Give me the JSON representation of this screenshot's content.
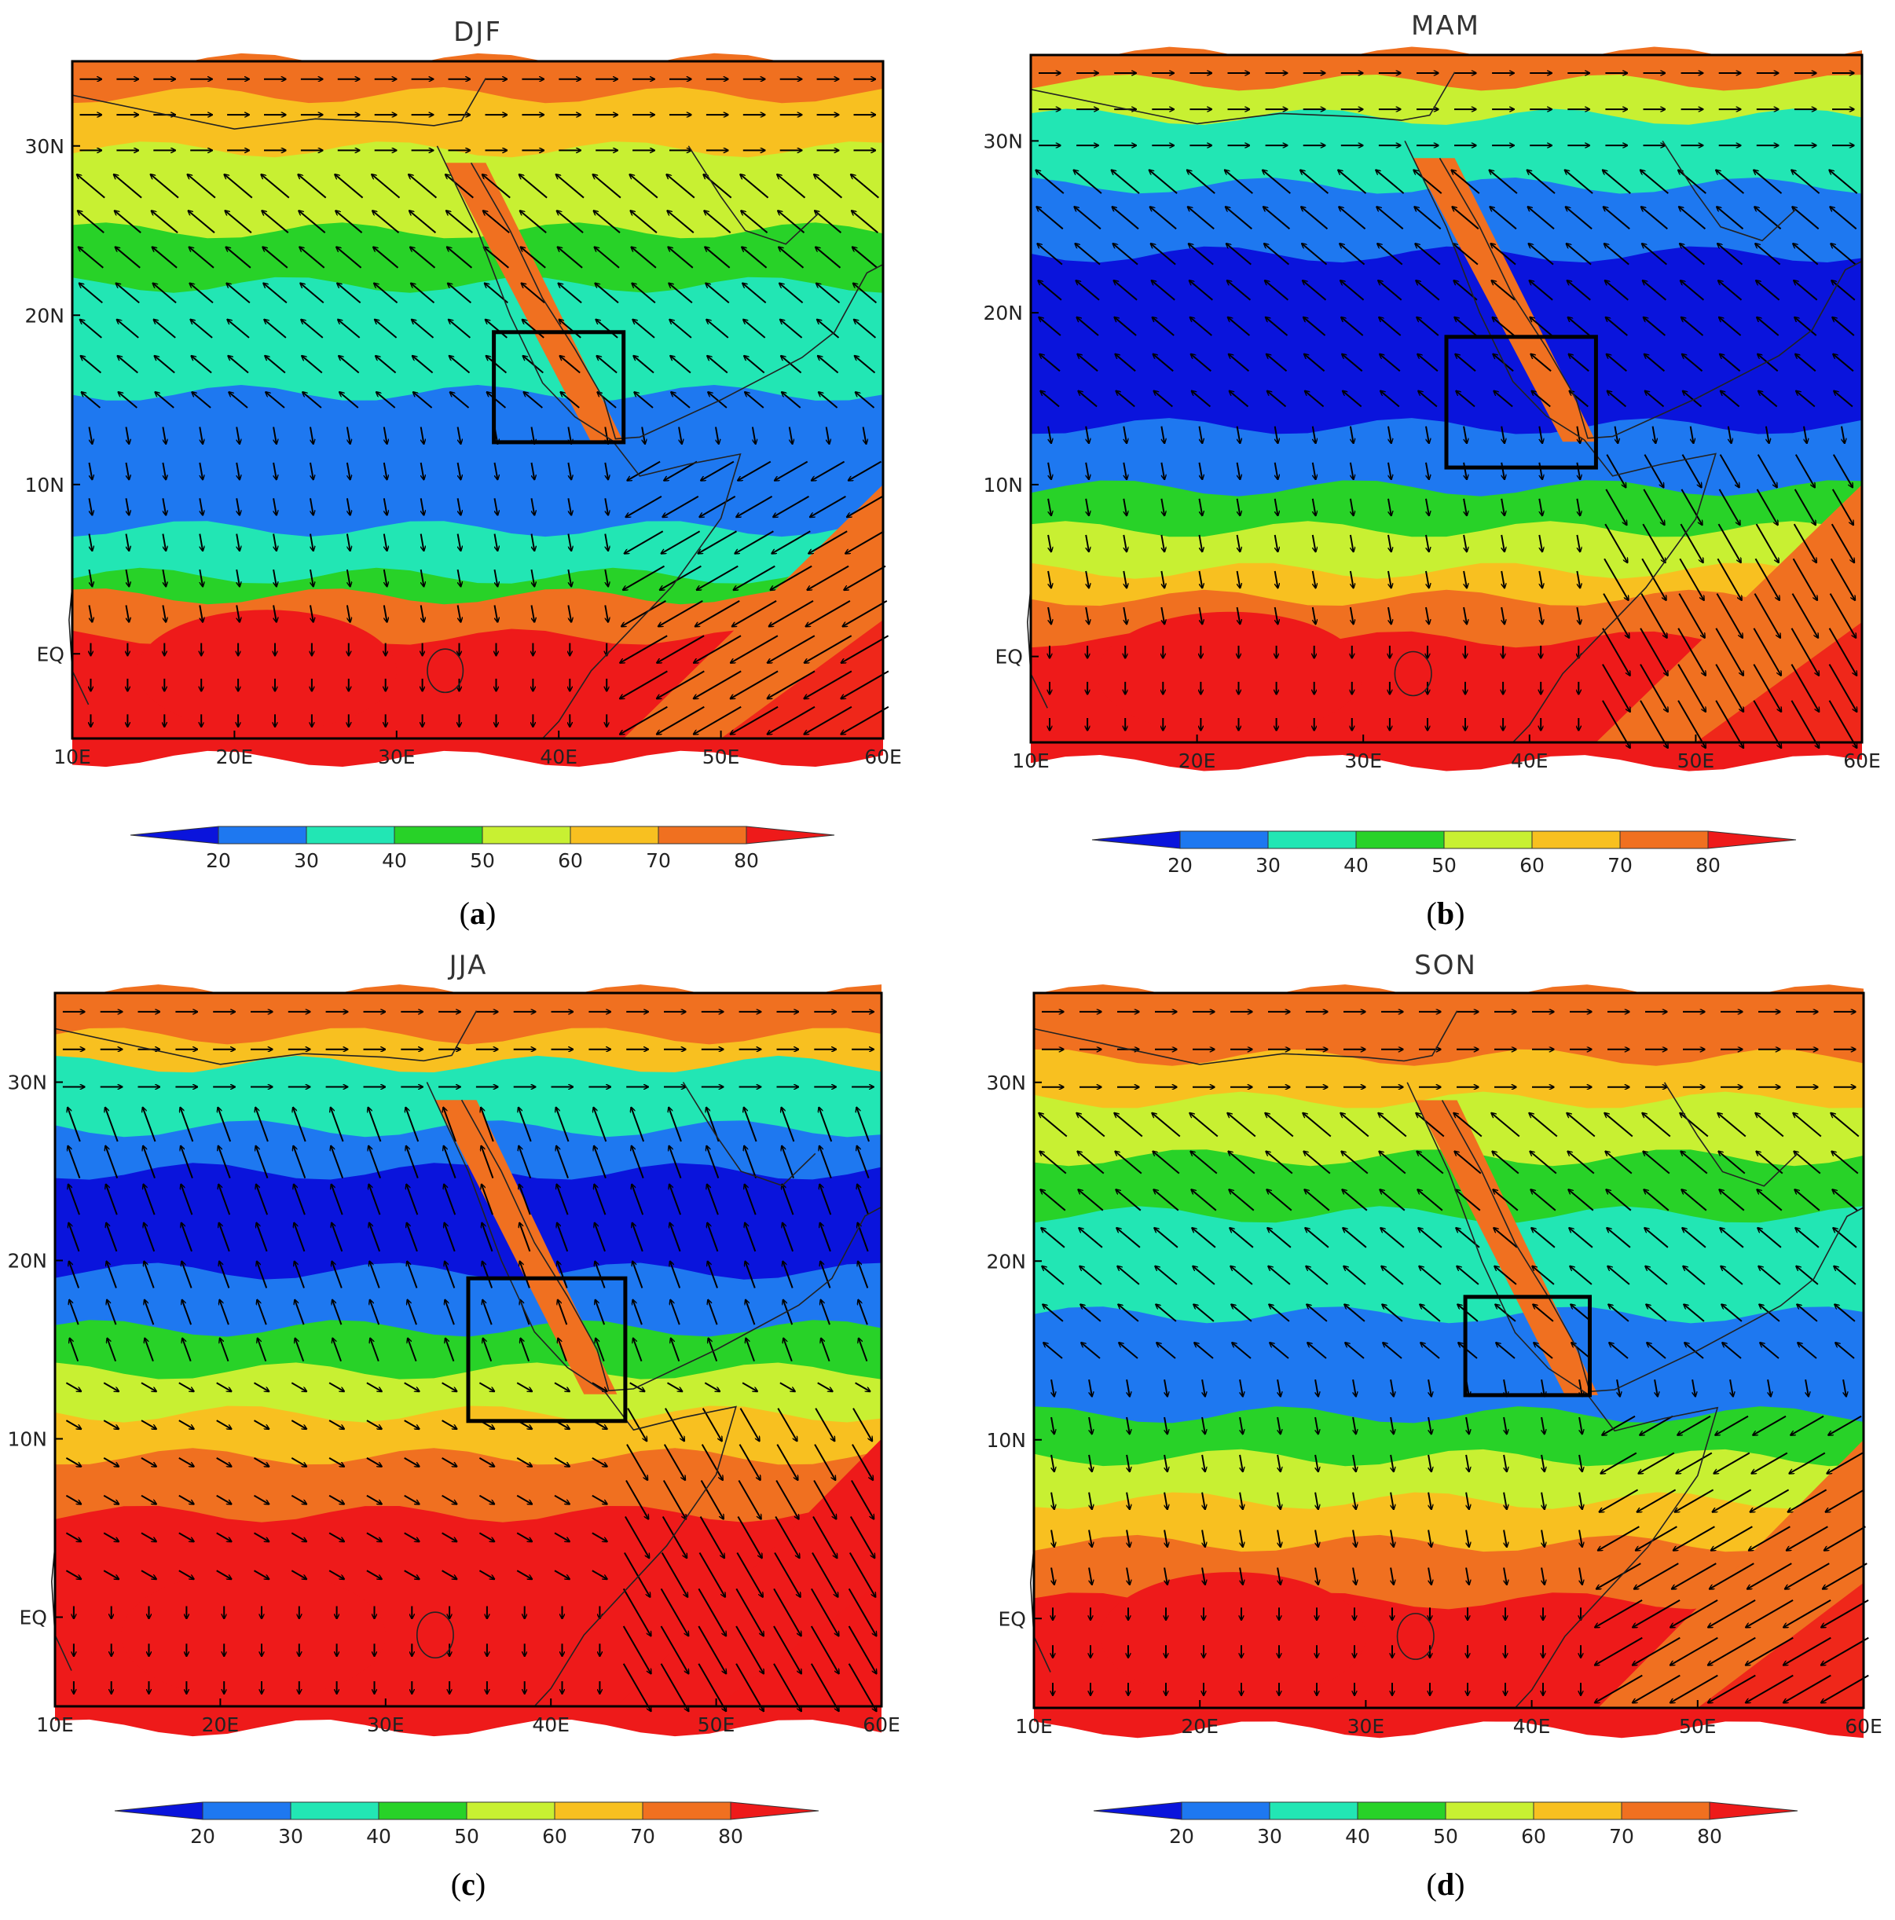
{
  "panels": [
    {
      "id": "a",
      "title": "DJF",
      "caption_letter": "a",
      "box": {
        "lon": [
          36,
          44
        ],
        "lat": [
          12.5,
          19
        ]
      }
    },
    {
      "id": "b",
      "title": "MAM",
      "caption_letter": "b",
      "box": {
        "lon": [
          35,
          44
        ],
        "lat": [
          11,
          18.6
        ]
      }
    },
    {
      "id": "c",
      "title": "JJA",
      "caption_letter": "c",
      "box": {
        "lon": [
          35,
          44.5
        ],
        "lat": [
          11,
          19
        ]
      }
    },
    {
      "id": "d",
      "title": "SON",
      "caption_letter": "d",
      "box": {
        "lon": [
          36,
          43.5
        ],
        "lat": [
          12.5,
          18
        ]
      }
    }
  ],
  "axes": {
    "lon_range": [
      10,
      60
    ],
    "lat_range": [
      -5,
      35
    ],
    "x_ticks": [
      "10E",
      "20E",
      "30E",
      "40E",
      "50E",
      "60E"
    ],
    "y_ticks": [
      "EQ",
      "10N",
      "20N",
      "30N"
    ]
  },
  "colorbar": {
    "labels": [
      "20",
      "30",
      "40",
      "50",
      "60",
      "70",
      "80"
    ],
    "colors": [
      "#0a14dc",
      "#1e78f0",
      "#22e6b4",
      "#28d228",
      "#c8f032",
      "#f8c020",
      "#f07020",
      "#ee1a1a"
    ]
  }
}
